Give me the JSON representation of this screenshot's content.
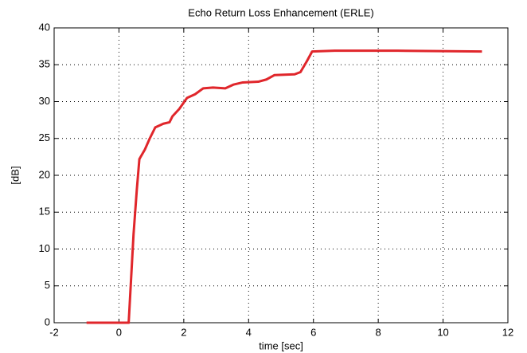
{
  "chart_data": {
    "type": "line",
    "title": "Echo Return Loss Enhancement (ERLE)",
    "xlabel": "time [sec]",
    "ylabel": "[dB]",
    "x": [
      -1,
      0.3,
      0.35,
      0.45,
      0.55,
      0.63,
      0.8,
      0.95,
      1.12,
      1.37,
      1.56,
      1.65,
      1.86,
      2.1,
      2.35,
      2.6,
      2.9,
      3.28,
      3.53,
      3.82,
      4.3,
      4.55,
      4.8,
      5.42,
      5.6,
      5.8,
      5.96,
      6.65,
      8.6,
      11.2
    ],
    "values": [
      0,
      0,
      4,
      12,
      18,
      22.2,
      23.5,
      25,
      26.5,
      27,
      27.2,
      28,
      29,
      30.5,
      31,
      31.8,
      31.9,
      31.8,
      32.3,
      32.6,
      32.7,
      33,
      33.6,
      33.7,
      34,
      35.5,
      36.8,
      36.9,
      36.9,
      36.8
    ],
    "color": "#e0262b",
    "xlim": [
      -2,
      12
    ],
    "xticks": [
      -2,
      0,
      2,
      4,
      6,
      8,
      10,
      12
    ],
    "ylim": [
      0,
      40
    ],
    "yticks": [
      0,
      5,
      10,
      15,
      20,
      25,
      30,
      35,
      40
    ],
    "grid": true
  }
}
